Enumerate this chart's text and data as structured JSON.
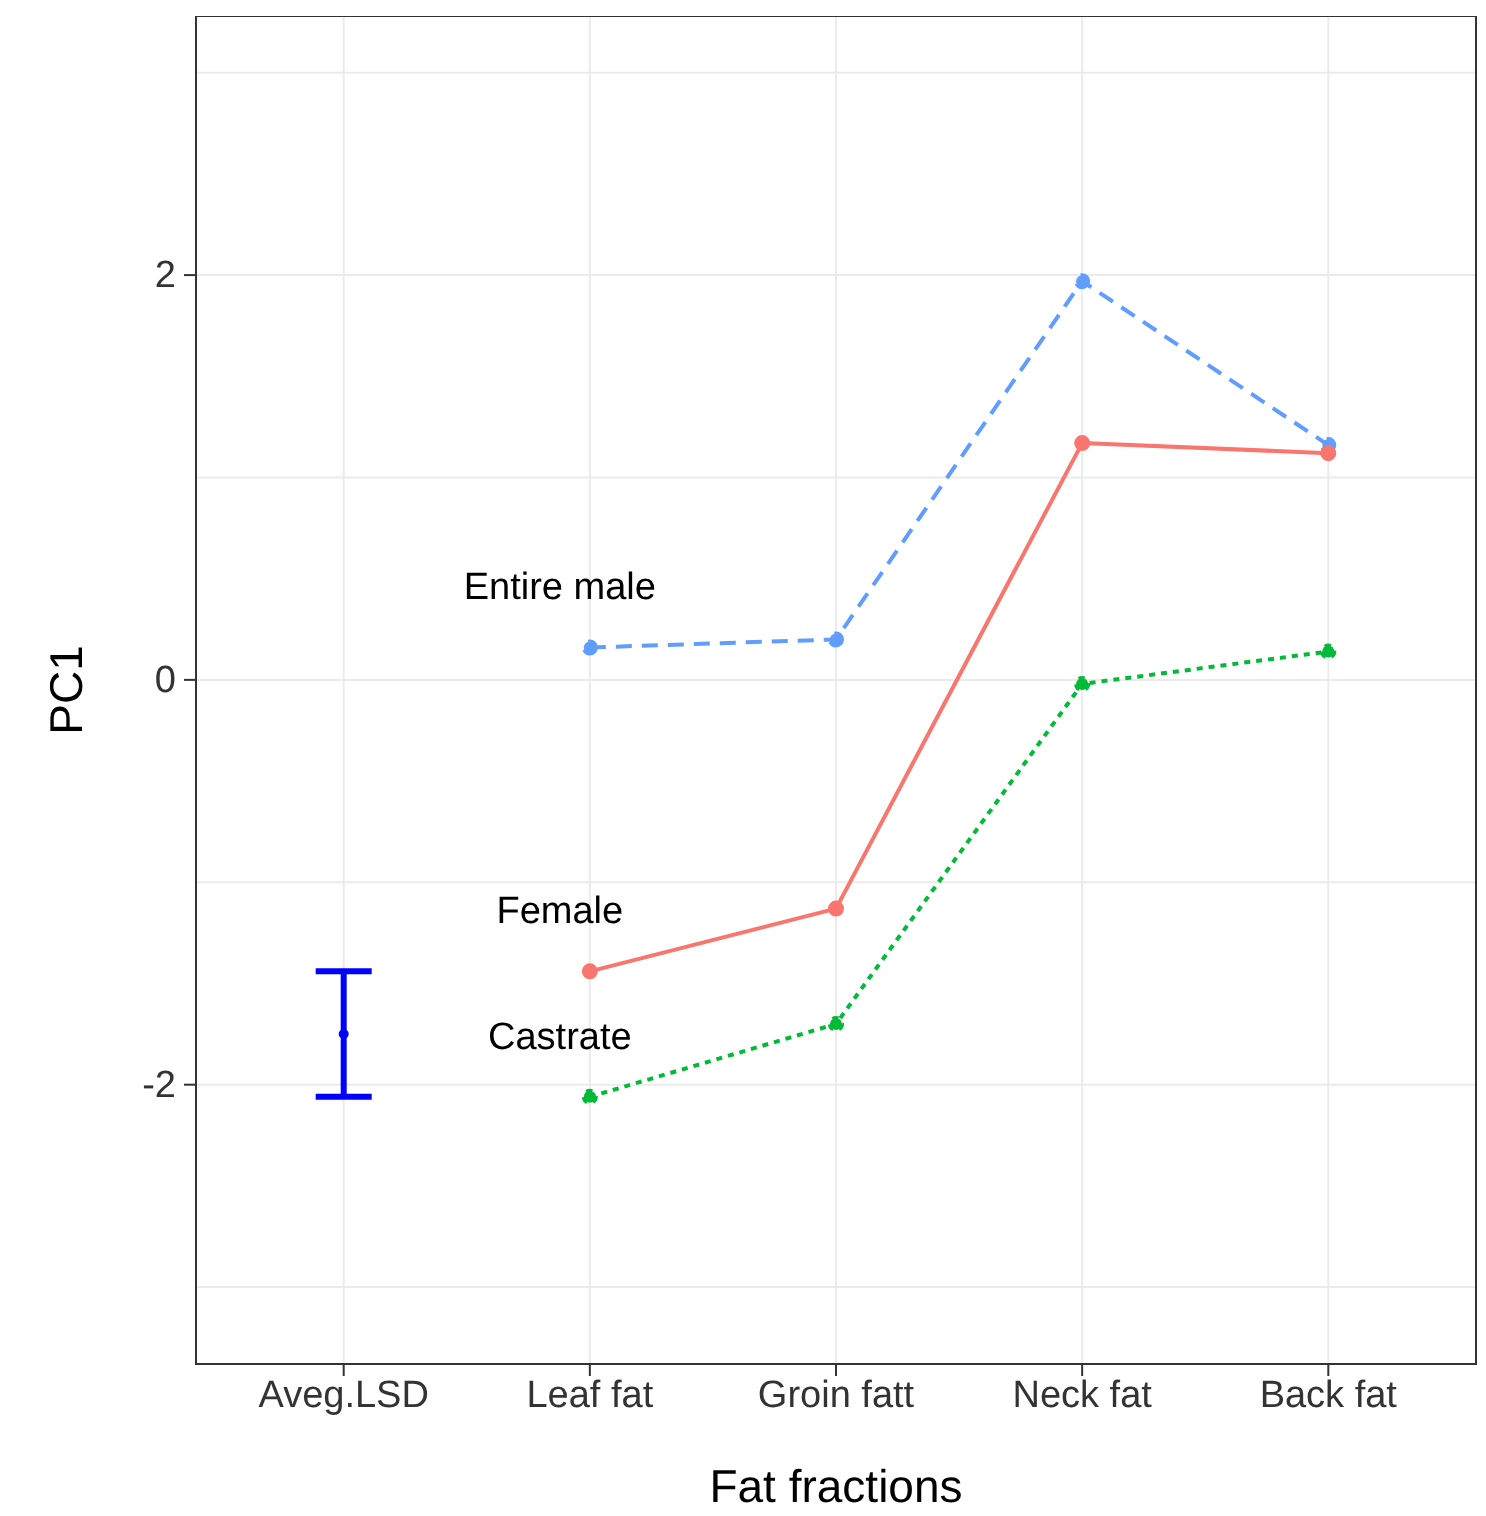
{
  "chart_data": {
    "type": "line",
    "xlabel": "Fat fractions",
    "ylabel": "PC1",
    "categories": [
      "Aveg.LSD",
      "Leaf fat",
      "Groin fatt",
      "Neck fat",
      "Back fat"
    ],
    "ylim": [
      -3.38,
      3.28
    ],
    "yticks": [
      {
        "value": -3,
        "label": null
      },
      -2,
      {
        "value": -1,
        "label": null
      },
      0,
      {
        "value": 1,
        "label": null
      },
      2,
      {
        "value": 3,
        "label": null
      }
    ],
    "grid": true,
    "legend": false,
    "marker": "circle",
    "series": [
      {
        "name": "Entire male",
        "color": "#619cff",
        "line_style": "dashed",
        "values": [
          null,
          0.16,
          0.2,
          1.97,
          1.16
        ]
      },
      {
        "name": "Female",
        "color": "#f8766d",
        "line_style": "solid",
        "values": [
          null,
          -1.44,
          -1.13,
          1.17,
          1.12
        ]
      },
      {
        "name": "Castrate",
        "color": "#00ba38",
        "line_style": "dotted",
        "values": [
          null,
          -2.06,
          -1.7,
          -0.02,
          0.14
        ]
      },
      {
        "type": "scatter",
        "color": "#0000ff",
        "marker": "circle",
        "values": [
          -1.75,
          null,
          null,
          null,
          null
        ],
        "errors": [
          0.31,
          null,
          null,
          null,
          null
        ]
      }
    ]
  }
}
